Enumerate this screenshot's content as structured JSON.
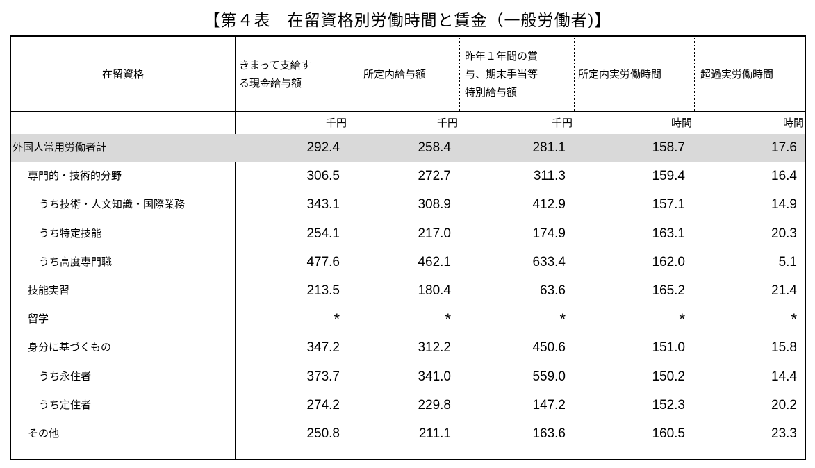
{
  "title": "【第４表　在留資格別労働時間と賃金（一般労働者)】",
  "table": {
    "columns": [
      "在留資格",
      "きまって支給す\nる現金給与額",
      "所定内給与額",
      "昨年１年間の賞\n与、期末手当等\n特別給与額",
      "所定内実労働時間",
      "超過実労働時間"
    ],
    "units": [
      "千円",
      "千円",
      "千円",
      "時間",
      "時間"
    ],
    "rows": [
      {
        "label": "外国人常用労働者計",
        "values": [
          "292.4",
          "258.4",
          "281.1",
          "158.7",
          "17.6"
        ]
      },
      {
        "label": "専門的・技術的分野",
        "values": [
          "306.5",
          "272.7",
          "311.3",
          "159.4",
          "16.4"
        ]
      },
      {
        "label": "うち技術・人文知識・国際業務",
        "values": [
          "343.1",
          "308.9",
          "412.9",
          "157.1",
          "14.9"
        ]
      },
      {
        "label": "うち特定技能",
        "values": [
          "254.1",
          "217.0",
          "174.9",
          "163.1",
          "20.3"
        ]
      },
      {
        "label": "うち高度専門職",
        "values": [
          "477.6",
          "462.1",
          "633.4",
          "162.0",
          "5.1"
        ]
      },
      {
        "label": "技能実習",
        "values": [
          "213.5",
          "180.4",
          "63.6",
          "165.2",
          "21.4"
        ]
      },
      {
        "label": "留学",
        "values": [
          "*",
          "*",
          "*",
          "*",
          "*"
        ]
      },
      {
        "label": "身分に基づくもの",
        "values": [
          "347.2",
          "312.2",
          "450.6",
          "151.0",
          "15.8"
        ]
      },
      {
        "label": "うち永住者",
        "values": [
          "373.7",
          "341.0",
          "559.0",
          "150.2",
          "14.4"
        ]
      },
      {
        "label": "うち定住者",
        "values": [
          "274.2",
          "229.8",
          "147.2",
          "152.3",
          "20.2"
        ]
      },
      {
        "label": "その他",
        "values": [
          "250.8",
          "211.1",
          "163.6",
          "160.5",
          "23.3"
        ]
      }
    ]
  }
}
